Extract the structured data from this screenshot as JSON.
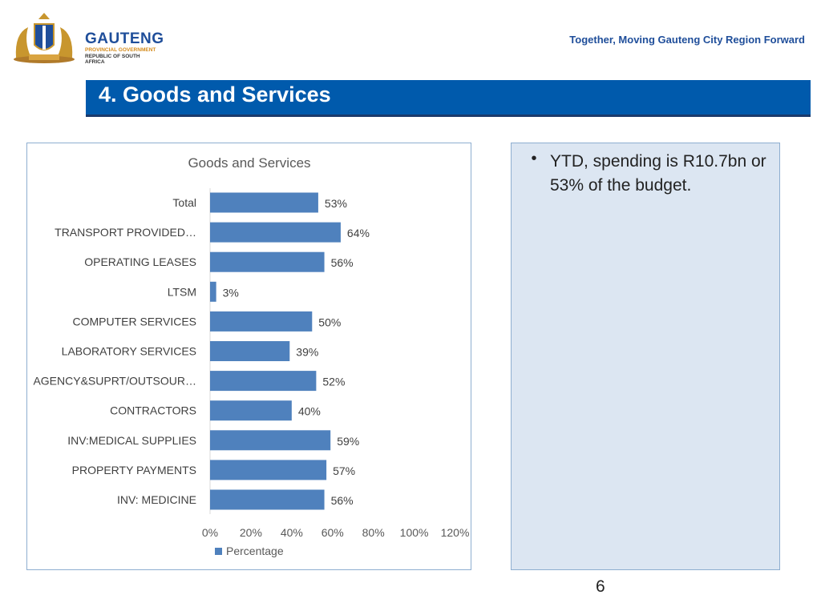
{
  "header": {
    "org_name": "GAUTENG",
    "org_line1": "PROVINCIAL GOVERNMENT",
    "org_line2": "REPUBLIC OF SOUTH AFRICA",
    "tagline": "Together, Moving Gauteng City Region Forward"
  },
  "slide": {
    "title": "4. Goods and Services",
    "page_number": "6"
  },
  "notes": {
    "bullet_symbol": "•",
    "bullet_text": "YTD, spending is R10.7bn or 53% of the budget."
  },
  "chart_data": {
    "type": "bar",
    "orientation": "horizontal",
    "title": "Goods and Services",
    "categories": [
      "Total",
      "TRANSPORT PROVIDED…",
      "OPERATING LEASES",
      "LTSM",
      "COMPUTER SERVICES",
      "LABORATORY SERVICES",
      "AGENCY&SUPRT/OUTSOUR…",
      "CONTRACTORS",
      "INV:MEDICAL SUPPLIES",
      "PROPERTY PAYMENTS",
      "INV: MEDICINE"
    ],
    "series": [
      {
        "name": "Percentage",
        "values": [
          53,
          64,
          56,
          3,
          50,
          39,
          52,
          40,
          59,
          57,
          56
        ]
      }
    ],
    "data_labels": [
      "53%",
      "64%",
      "56%",
      "3%",
      "50%",
      "39%",
      "52%",
      "40%",
      "59%",
      "57%",
      "56%"
    ],
    "xlim": [
      0,
      120
    ],
    "xticks": [
      "0%",
      "20%",
      "40%",
      "60%",
      "80%",
      "100%",
      "120%"
    ],
    "legend": "bottom",
    "bar_color": "#4f81bd",
    "grid": false
  }
}
